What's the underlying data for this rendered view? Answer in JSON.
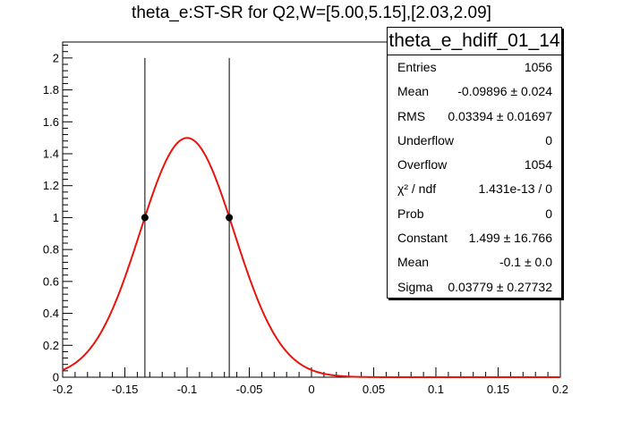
{
  "chart_data": {
    "type": "line",
    "title": "theta_e:ST-SR for Q2,W=[5.00,5.15],[2.03,2.09]",
    "xlabel": "",
    "ylabel": "",
    "xlim": [
      -0.2,
      0.2
    ],
    "ylim": [
      0,
      2.1
    ],
    "x_ticks": [
      -0.2,
      -0.15,
      -0.1,
      -0.05,
      0,
      0.05,
      0.1,
      0.15,
      0.2
    ],
    "x_tick_labels": [
      "-0.2",
      "-0.15",
      "-0.1",
      "-0.05",
      "0",
      "0.05",
      "0.1",
      "0.15",
      "0.2"
    ],
    "y_ticks": [
      0,
      0.2,
      0.4,
      0.6,
      0.8,
      1,
      1.2,
      1.4,
      1.6,
      1.8,
      2
    ],
    "y_tick_labels": [
      "0",
      "0.2",
      "0.4",
      "0.6",
      "0.8",
      "1",
      "1.2",
      "1.4",
      "1.6",
      "1.8",
      "2"
    ],
    "grid": false,
    "series": [
      {
        "kind": "gaussian_fit",
        "color": "#e8140c",
        "constant": 1.499,
        "mean": -0.1,
        "sigma": 0.03779,
        "x_range": [
          -0.2,
          0.2
        ]
      }
    ],
    "points": [
      {
        "x": -0.1339,
        "y": 1.0
      },
      {
        "x": -0.0661,
        "y": 1.0
      }
    ],
    "vertical_lines": [
      {
        "x": -0.1339,
        "y_from": 0,
        "y_to": 2.0
      },
      {
        "x": -0.0661,
        "y_from": 0,
        "y_to": 2.0
      }
    ]
  },
  "statbox": {
    "name": "theta_e_hdiff_01_14",
    "rows": [
      {
        "label": "Entries",
        "value": "1056"
      },
      {
        "label": "Mean",
        "value": "-0.09896 ±  0.024"
      },
      {
        "label": "RMS",
        "value": "0.03394 ± 0.01697"
      },
      {
        "label": "Underflow",
        "value": "0"
      },
      {
        "label": "Overflow",
        "value": "1054"
      },
      {
        "label": "χ² / ndf",
        "value": "1.431e-13 / 0"
      },
      {
        "label": "Prob",
        "value": "0"
      },
      {
        "label": "Constant",
        "value": "1.499 ± 16.766"
      },
      {
        "label": "Mean",
        "value": "-0.1 ± 0.0"
      },
      {
        "label": "Sigma",
        "value": "0.03779 ± 0.27732"
      }
    ]
  }
}
